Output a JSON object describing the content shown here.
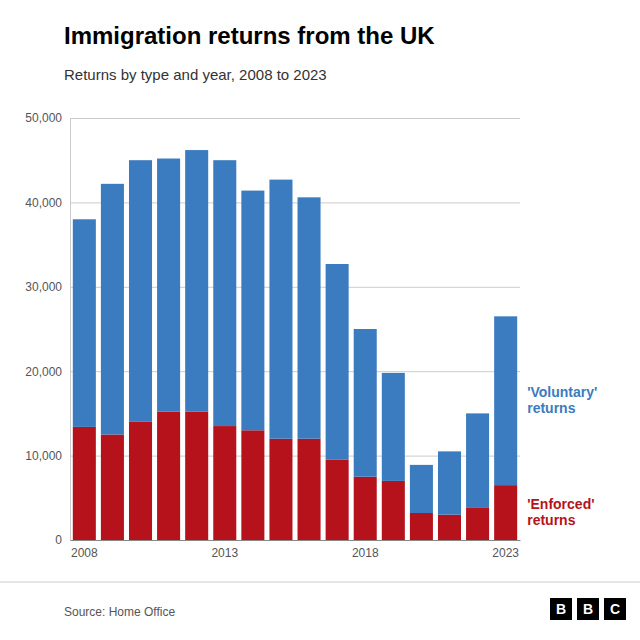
{
  "chart_data": {
    "type": "bar",
    "stacked": true,
    "title": "Immigration returns from the UK",
    "subtitle": "Returns by type and year, 2008 to 2023",
    "source": "Source: Home Office",
    "logo": [
      "B",
      "B",
      "C"
    ],
    "categories": [
      "2008",
      null,
      null,
      null,
      null,
      "2013",
      null,
      null,
      null,
      null,
      "2018",
      null,
      null,
      null,
      null,
      "2023"
    ],
    "series": [
      {
        "name": "'Enforced'\nreturns",
        "color": "#b5121b",
        "values": [
          13400,
          12500,
          14000,
          15200,
          15200,
          13500,
          13000,
          12000,
          12000,
          9500,
          7500,
          7000,
          3200,
          3000,
          3800,
          6500
        ]
      },
      {
        "name": "'Voluntary'\nreturns",
        "color": "#3b7bbf",
        "values": [
          24600,
          29700,
          31000,
          30000,
          31000,
          31500,
          28400,
          30700,
          28600,
          23200,
          17500,
          12800,
          5700,
          7500,
          11200,
          20000
        ]
      }
    ],
    "ylim": [
      0,
      50000
    ],
    "yticks": [
      0,
      {
        "value": 10000,
        "label": "10,000"
      },
      {
        "value": 20000,
        "label": "20,000"
      },
      {
        "value": 30000,
        "label": "30,000"
      },
      {
        "value": 40000,
        "label": "40,000"
      },
      {
        "value": 50000,
        "label": "50,000"
      }
    ],
    "grid": true
  }
}
